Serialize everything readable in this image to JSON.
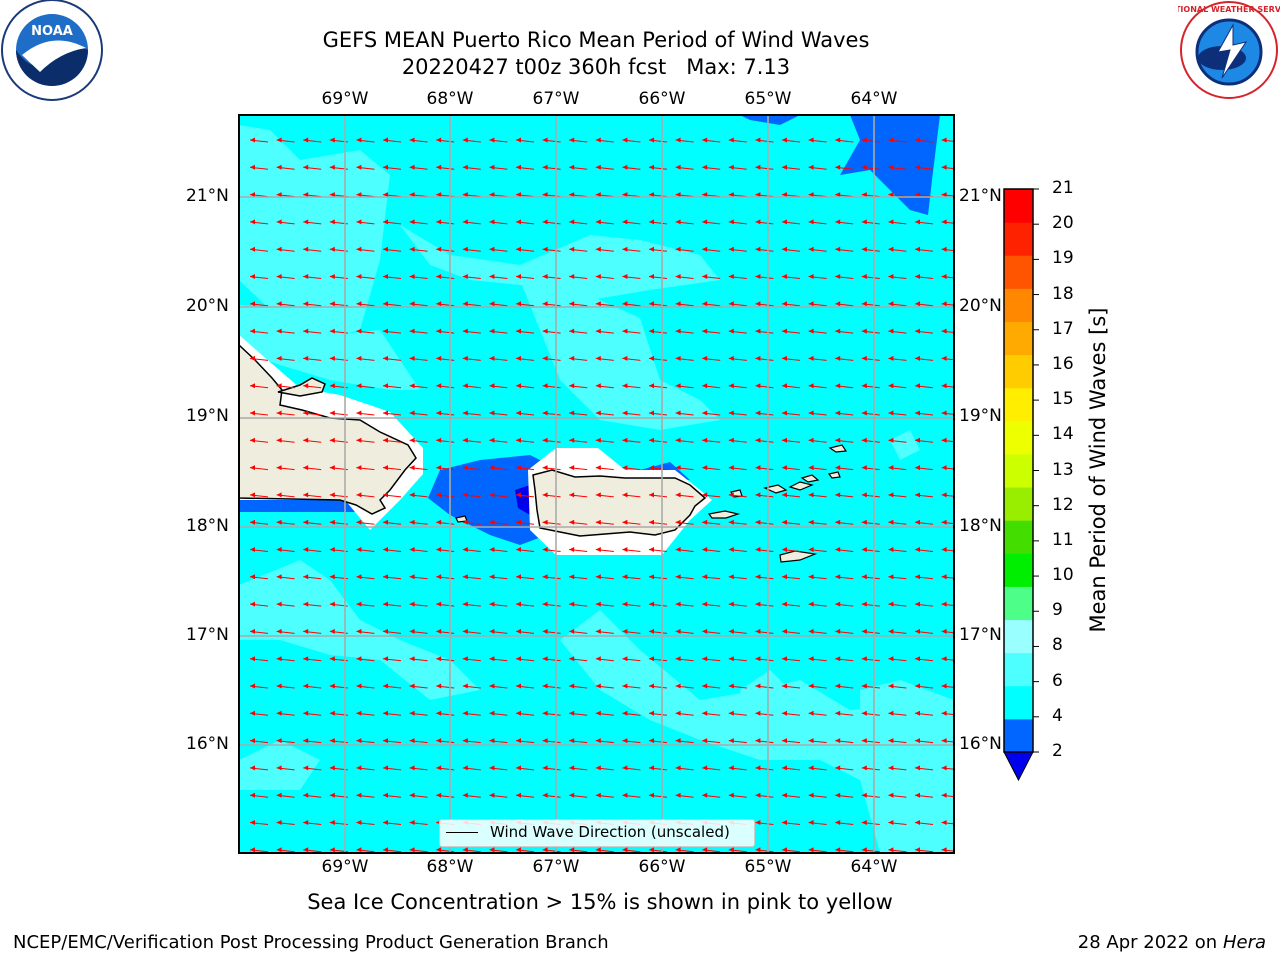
{
  "title": {
    "line1": "GEFS MEAN Puerto Rico Mean Period of Wind Waves",
    "line2": "20220427 t00z 360h fcst   Max: 7.13"
  },
  "map": {
    "longitudes": [
      "69°W",
      "68°W",
      "67°W",
      "66°W",
      "65°W",
      "64°W"
    ],
    "latitudes": [
      "21°N",
      "20°N",
      "19°N",
      "18°N",
      "17°N",
      "16°N"
    ],
    "legend_label": "Wind Wave Direction (unscaled)",
    "arrow_color": "#ff0000",
    "ocean_color": "#00ffff",
    "land_color": "#efedde"
  },
  "colorbar": {
    "label": "Mean Period of Wind Waves [s]",
    "ticks": [
      "2",
      "4",
      "6",
      "8",
      "9",
      "10",
      "11",
      "12",
      "13",
      "14",
      "15",
      "16",
      "17",
      "18",
      "19",
      "20",
      "21"
    ],
    "colors": [
      "#0066ff",
      "#00ffff",
      "#4dffff",
      "#99ffff",
      "#4dff88",
      "#00ee00",
      "#44dd00",
      "#99ee00",
      "#ccff00",
      "#eeff00",
      "#ffee00",
      "#ffcc00",
      "#ffaa00",
      "#ff8800",
      "#ff5500",
      "#ff2200",
      "#ff0000"
    ],
    "extend_color": "#0000ee"
  },
  "subtitle": "Sea Ice Concentration > 15% is shown in pink to yellow",
  "footer": {
    "left": "NCEP/EMC/Verification Post Processing Product Generation Branch",
    "right_date": "28 Apr 2022 on",
    "right_host": "Hera"
  },
  "logos": {
    "noaa": "NOAA",
    "nws": "NATIONAL WEATHER SERVICE"
  }
}
